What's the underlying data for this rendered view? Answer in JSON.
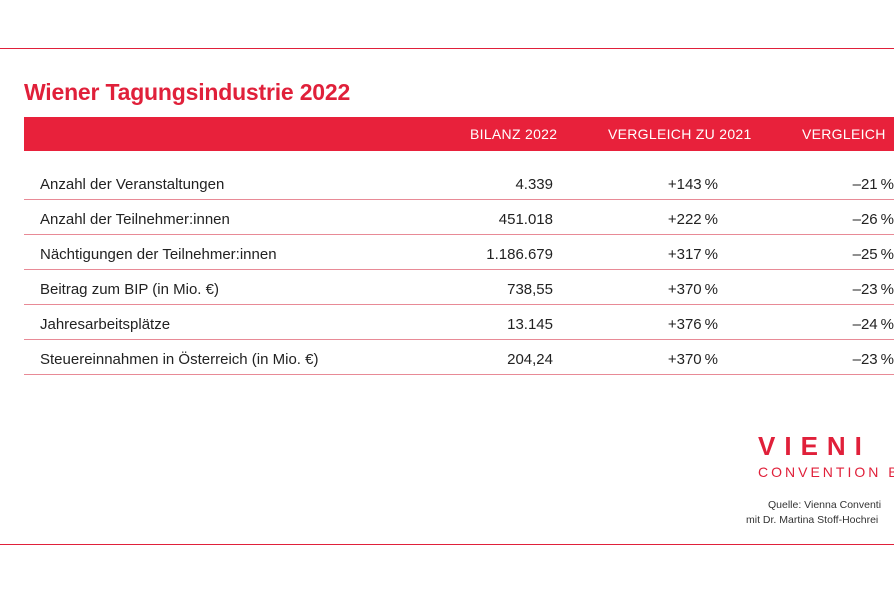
{
  "title": "Wiener Tagungsindustrie 2022",
  "table": {
    "headers": [
      "BILANZ 2022",
      "VERGLEICH ZU 2021",
      "VERGLEICH"
    ],
    "rows": [
      {
        "label": "Anzahl der Veranstaltungen",
        "v1": "4.339",
        "v2": "+143 %",
        "v3": "–21 %"
      },
      {
        "label": "Anzahl der Teilnehmer:innen",
        "v1": "451.018",
        "v2": "+222 %",
        "v3": "–26 %"
      },
      {
        "label": "Nächtigungen der Teilnehmer:innen",
        "v1": "1.186.679",
        "v2": "+317 %",
        "v3": "–25 %"
      },
      {
        "label": "Beitrag zum BIP (in Mio. €)",
        "v1": "738,55",
        "v2": "+370 %",
        "v3": "–23 %"
      },
      {
        "label": "Jahresarbeitsplätze",
        "v1": "13.145",
        "v2": "+376 %",
        "v3": "–24 %"
      },
      {
        "label": "Steuereinnahmen in Österreich (in Mio. €)",
        "v1": "204,24",
        "v2": "+370 %",
        "v3": "–23 %"
      }
    ]
  },
  "logo": {
    "main": "VIENI",
    "sub": "CONVENTION B"
  },
  "source": {
    "line1": "Quelle: Vienna Conventi",
    "line2": "mit Dr. Martina Stoff-Hochrei"
  },
  "colors": {
    "accent": "#e0203a",
    "header_bg": "#e8213b",
    "row_rule": "#e88a96"
  }
}
